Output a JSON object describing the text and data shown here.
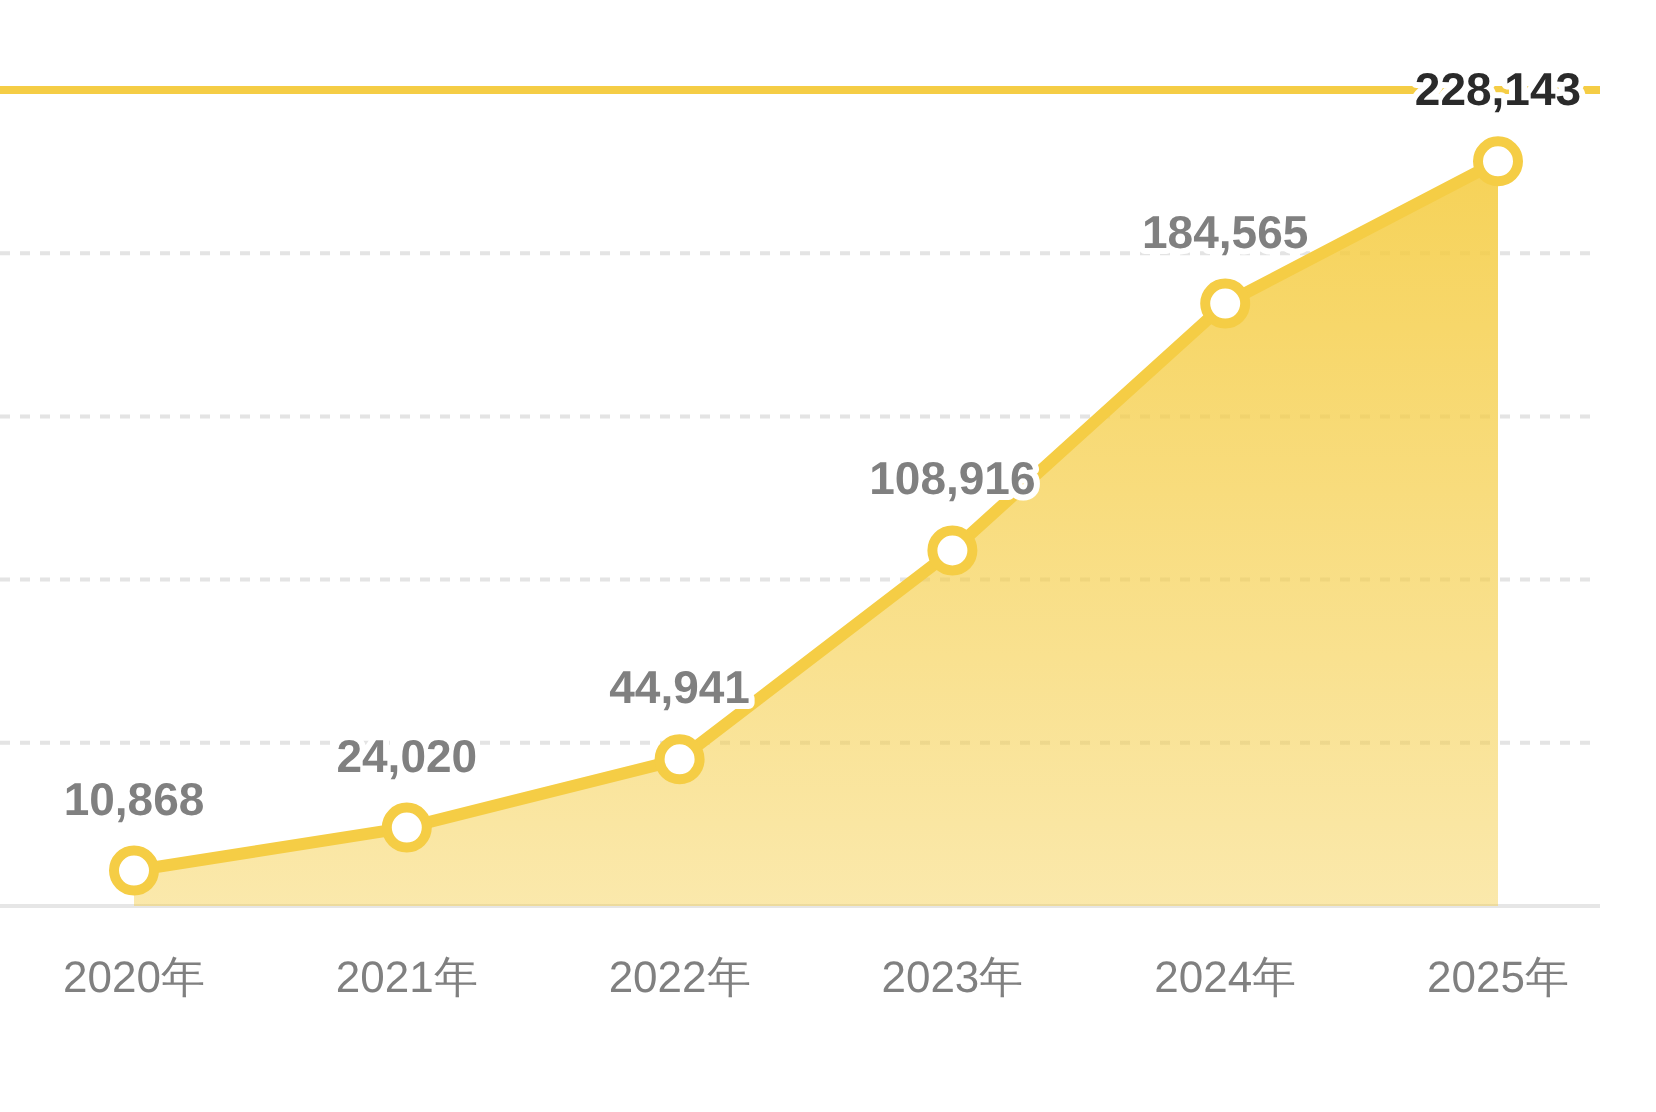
{
  "chart_data": {
    "type": "area",
    "categories": [
      "2020年",
      "2021年",
      "2022年",
      "2023年",
      "2024年",
      "2025年"
    ],
    "series": [
      {
        "color": "#f5cd45",
        "values": [
          10868,
          24020,
          44941,
          108916,
          184565,
          228143
        ],
        "value_labels": [
          "10,868",
          "24,020",
          "44,941",
          "108,916",
          "184,565",
          "228,143"
        ]
      }
    ],
    "ylim": [
      0,
      250000
    ],
    "yticks": [
      {
        "value": 50000,
        "label": null
      },
      {
        "value": 100000,
        "label": null
      },
      {
        "value": 150000,
        "label": null
      },
      {
        "value": 200000,
        "label": null
      }
    ],
    "tick_labels": "x",
    "grid": "y",
    "marker": "circle",
    "ref_lines": [
      {
        "axis": "y",
        "value": 250000,
        "color": "#f5cd45"
      }
    ]
  }
}
